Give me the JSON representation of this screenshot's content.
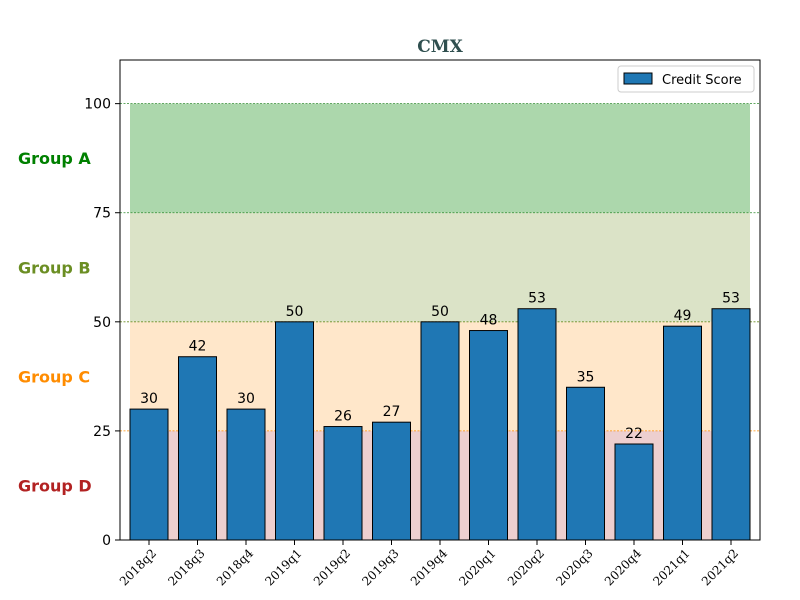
{
  "chart_data": {
    "type": "bar",
    "title": "CMX",
    "xlabel": "",
    "ylabel": "",
    "ylim": [
      0,
      110
    ],
    "yticks": [
      0,
      25,
      50,
      75,
      100
    ],
    "categories": [
      "2018q2",
      "2018q3",
      "2018q4",
      "2019q1",
      "2019q2",
      "2019q3",
      "2019q4",
      "2020q1",
      "2020q2",
      "2020q3",
      "2020q4",
      "2021q1",
      "2021q2"
    ],
    "series": [
      {
        "name": "Credit Score",
        "color": "#1f77b4",
        "values": [
          30,
          42,
          30,
          50,
          26,
          27,
          50,
          48,
          53,
          35,
          22,
          49,
          53
        ]
      }
    ],
    "legend_position": "top-right",
    "bands": [
      {
        "label": "Group A",
        "from": 75,
        "to": 100,
        "fill": "#a8d5a8",
        "label_color": "#008000",
        "line_color": "#2e8b2e"
      },
      {
        "label": "Group B",
        "from": 50,
        "to": 75,
        "fill": "#d9e2c4",
        "label_color": "#6b8e23",
        "line_color": "#6b8e23"
      },
      {
        "label": "Group C",
        "from": 25,
        "to": 50,
        "fill": "#ffe6c7",
        "label_color": "#ff8c00",
        "line_color": "#ff8c00"
      },
      {
        "label": "Group D",
        "from": 0,
        "to": 25,
        "fill": "#eccccc",
        "label_color": "#b22222",
        "line_color": "#b22222"
      }
    ]
  }
}
